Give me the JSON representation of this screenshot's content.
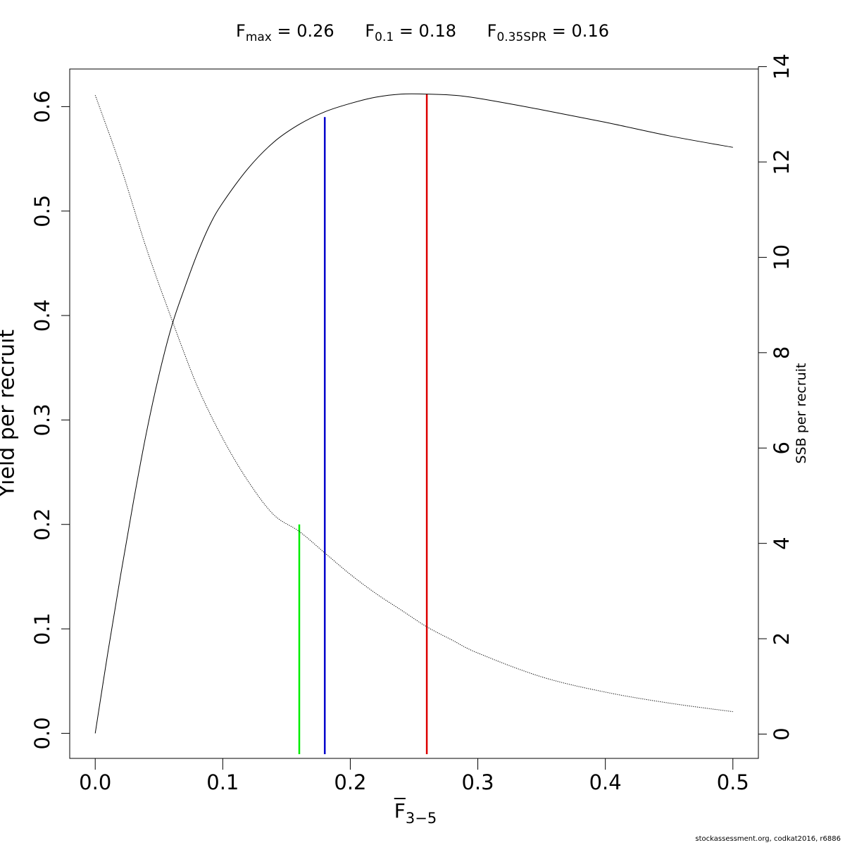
{
  "title": {
    "fmax": {
      "symbol": "F",
      "sub": "max",
      "text": " = 0.26"
    },
    "f01": {
      "symbol": "F",
      "sub": "0.1",
      "text": " = 0.18"
    },
    "f035spr": {
      "symbol": "F",
      "sub": "0.35SPR",
      "text": " = 0.16"
    }
  },
  "footer": "stockassessment.org, codkat2016, r6886",
  "chart_data": {
    "type": "line",
    "xlabel": {
      "main": "F",
      "sub": "3−5"
    },
    "ylabel": "Yield per recruit",
    "y2label": "SSB per recruit",
    "xlim": [
      -0.02,
      0.52
    ],
    "ylim": [
      -0.024,
      0.636
    ],
    "y2lim": [
      -0.51,
      13.95
    ],
    "xticks": [
      0.0,
      0.1,
      0.2,
      0.3,
      0.4,
      0.5
    ],
    "xtick_labels": [
      "0.0",
      "0.1",
      "0.2",
      "0.3",
      "0.4",
      "0.5"
    ],
    "yticks": [
      0.0,
      0.1,
      0.2,
      0.3,
      0.4,
      0.5,
      0.6
    ],
    "ytick_labels": [
      "0.0",
      "0.1",
      "0.2",
      "0.3",
      "0.4",
      "0.5",
      "0.6"
    ],
    "y2ticks": [
      0,
      2,
      4,
      6,
      8,
      10,
      12,
      14
    ],
    "y2tick_labels": [
      "0",
      "2",
      "4",
      "6",
      "8",
      "10",
      "12",
      "14"
    ],
    "series": [
      {
        "axis": "left",
        "style": "solid",
        "color": "#000000",
        "x": [
          0.0,
          0.01,
          0.02,
          0.03,
          0.04,
          0.05,
          0.06,
          0.07,
          0.08,
          0.09,
          0.1,
          0.12,
          0.14,
          0.16,
          0.18,
          0.2,
          0.22,
          0.24,
          0.26,
          0.28,
          0.3,
          0.35,
          0.4,
          0.45,
          0.5
        ],
        "y": [
          0.0,
          0.078,
          0.152,
          0.222,
          0.287,
          0.343,
          0.39,
          0.426,
          0.459,
          0.487,
          0.508,
          0.541,
          0.566,
          0.583,
          0.595,
          0.603,
          0.609,
          0.612,
          0.612,
          0.611,
          0.608,
          0.597,
          0.585,
          0.572,
          0.561
        ]
      },
      {
        "axis": "right",
        "style": "dotted",
        "color": "#000000",
        "x": [
          0.0,
          0.02,
          0.04,
          0.06,
          0.08,
          0.1,
          0.12,
          0.14,
          0.16,
          0.18,
          0.2,
          0.22,
          0.24,
          0.26,
          0.28,
          0.3,
          0.35,
          0.4,
          0.45,
          0.5
        ],
        "y": [
          13.4,
          11.9,
          10.2,
          8.7,
          7.3,
          6.2,
          5.3,
          4.6,
          4.25,
          3.8,
          3.35,
          2.95,
          2.6,
          2.25,
          1.97,
          1.7,
          1.2,
          0.88,
          0.65,
          0.47
        ]
      }
    ],
    "reference_lines": [
      {
        "name": "F0.35SPR",
        "x": 0.16,
        "y_top": 0.2,
        "color": "#00ee00"
      },
      {
        "name": "F0.1",
        "x": 0.18,
        "y_top": 0.59,
        "color": "#0000cc"
      },
      {
        "name": "Fmax",
        "x": 0.26,
        "y_top": 0.612,
        "color": "#dd0000"
      }
    ]
  }
}
